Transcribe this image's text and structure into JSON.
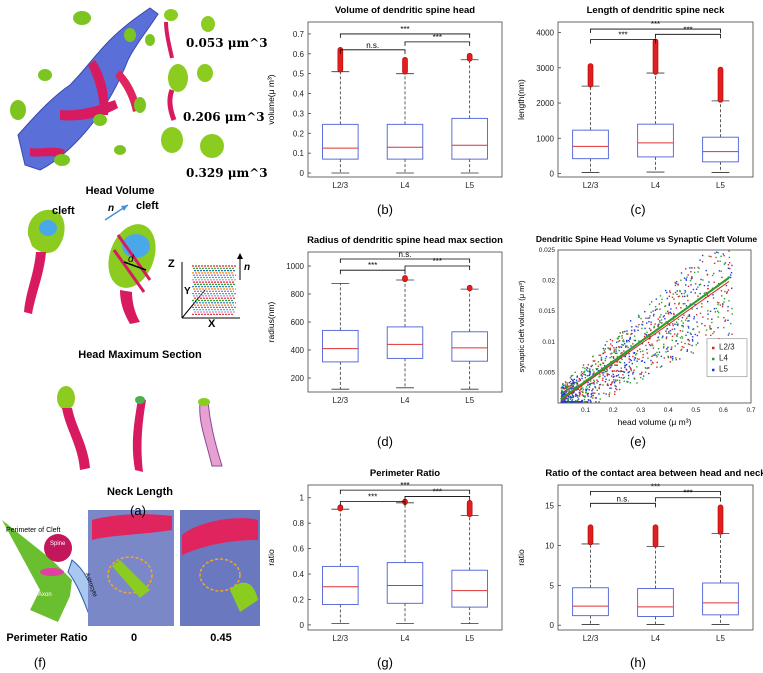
{
  "figure": {
    "left": {
      "head_volume_values": [
        "0.053 μm^3",
        "0.206 μm^3",
        "0.329 μm^3"
      ],
      "head_volume_caption": "Head Volume",
      "cleft_label_1": "cleft",
      "cleft_label_2": "cleft",
      "vector_n": "n",
      "diameter_d": "d",
      "axis_z": "Z",
      "axis_y": "Y",
      "axis_x": "X",
      "head_max_section_caption": "Head Maximum Section",
      "neck_length_caption": "Neck Length",
      "panel_a": "(a)",
      "perimeter_of_cleft": "Perimeter of Cleft",
      "spine_label": "Spine",
      "axon_label": "Axon",
      "astrocyte_label": "Astrocyte",
      "perimeter_ratio_caption": "Perimeter Ratio",
      "ratio_value_1": "0",
      "ratio_value_2": "0.45",
      "panel_f": "(f)"
    },
    "panel_letters": {
      "b": "(b)",
      "c": "(c)",
      "d": "(d)",
      "e": "(e)",
      "g": "(g)",
      "h": "(h)"
    }
  },
  "chart_data": [
    {
      "id": "b",
      "type": "box",
      "title": "Volume of dendritic spine head",
      "ylabel": "volume(μ m³)",
      "categories": [
        "L2/3",
        "L4",
        "L5"
      ],
      "ylim": [
        -0.02,
        0.76
      ],
      "yticks": [
        0,
        0.1,
        0.2,
        0.3,
        0.4,
        0.5,
        0.6,
        0.7
      ],
      "ytick_labels": [
        "0",
        "0.1",
        "0.2",
        "0.3",
        "0.4",
        "0.5",
        "0.6",
        "0.7"
      ],
      "boxes": [
        {
          "q1": 0.07,
          "median": 0.125,
          "q3": 0.245,
          "lo": 0.0,
          "hi": 0.51,
          "out_lo": 0.52,
          "out_hi": 0.62
        },
        {
          "q1": 0.07,
          "median": 0.13,
          "q3": 0.245,
          "lo": 0.0,
          "hi": 0.5,
          "out_lo": 0.51,
          "out_hi": 0.57
        },
        {
          "q1": 0.07,
          "median": 0.14,
          "q3": 0.275,
          "lo": 0.0,
          "hi": 0.57,
          "out_lo": 0.575,
          "out_hi": 0.59
        }
      ],
      "sig": [
        {
          "from": 0,
          "to": 2,
          "y": 0.7,
          "label": "***"
        },
        {
          "from": 0,
          "to": 1,
          "y": 0.62,
          "label": "n.s."
        },
        {
          "from": 1,
          "to": 2,
          "y": 0.66,
          "label": "***"
        }
      ]
    },
    {
      "id": "c",
      "type": "box",
      "title": "Length of dendritic spine neck",
      "ylabel": "length(nm)",
      "categories": [
        "L2/3",
        "L4",
        "L5"
      ],
      "ylim": [
        -100,
        4300
      ],
      "yticks": [
        0,
        1000,
        2000,
        3000,
        4000
      ],
      "ytick_labels": [
        "0",
        "1000",
        "2000",
        "3000",
        "4000"
      ],
      "boxes": [
        {
          "q1": 420,
          "median": 770,
          "q3": 1230,
          "lo": 30,
          "hi": 2480,
          "out_lo": 2520,
          "out_hi": 3050
        },
        {
          "q1": 470,
          "median": 870,
          "q3": 1400,
          "lo": 40,
          "hi": 2850,
          "out_lo": 2880,
          "out_hi": 3750
        },
        {
          "q1": 330,
          "median": 620,
          "q3": 1030,
          "lo": 30,
          "hi": 2060,
          "out_lo": 2090,
          "out_hi": 2950
        }
      ],
      "sig": [
        {
          "from": 0,
          "to": 2,
          "y": 4100,
          "label": "***"
        },
        {
          "from": 0,
          "to": 1,
          "y": 3800,
          "label": "***"
        },
        {
          "from": 1,
          "to": 2,
          "y": 3950,
          "label": "***"
        }
      ]
    },
    {
      "id": "d",
      "type": "box",
      "title": "Radius of dendritic spine head max section",
      "ylabel": "radius(nm)",
      "categories": [
        "L2/3",
        "L4",
        "L5"
      ],
      "ylim": [
        100,
        1100
      ],
      "yticks": [
        200,
        400,
        600,
        800,
        1000
      ],
      "ytick_labels": [
        "200",
        "400",
        "600",
        "800",
        "1000"
      ],
      "boxes": [
        {
          "q1": 315,
          "median": 410,
          "q3": 540,
          "lo": 120,
          "hi": 875,
          "out_lo": null,
          "out_hi": null
        },
        {
          "q1": 340,
          "median": 440,
          "q3": 565,
          "lo": 130,
          "hi": 900,
          "out_lo": 905,
          "out_hi": 915
        },
        {
          "q1": 320,
          "median": 415,
          "q3": 530,
          "lo": 120,
          "hi": 835,
          "out_lo": 840,
          "out_hi": 845
        }
      ],
      "sig": [
        {
          "from": 0,
          "to": 2,
          "y": 1050,
          "label": "n.s."
        },
        {
          "from": 0,
          "to": 1,
          "y": 970,
          "label": "***"
        },
        {
          "from": 1,
          "to": 2,
          "y": 1000,
          "label": "***"
        }
      ]
    },
    {
      "id": "e",
      "type": "scatter",
      "title": "Dendritic Spine Head Volume vs Synaptic Cleft Volume",
      "xlabel": "head volume (μ m³)",
      "ylabel": "synaptic cleft volume (μ m³)",
      "xlim": [
        0,
        0.7
      ],
      "ylim": [
        0,
        0.025
      ],
      "xticks": [
        0.1,
        0.2,
        0.3,
        0.4,
        0.5,
        0.6,
        0.7
      ],
      "xtick_labels": [
        "0.1",
        "0.2",
        "0.3",
        "0.4",
        "0.5",
        "0.6",
        "0.7"
      ],
      "yticks": [
        0.005,
        0.01,
        0.015,
        0.02,
        0.025
      ],
      "ytick_labels": [
        "0.005",
        "0.01",
        "0.015",
        "0.02",
        "0.025"
      ],
      "series": [
        {
          "name": "L2/3",
          "color": "#d62728"
        },
        {
          "name": "L4",
          "color": "#2ca02c"
        },
        {
          "name": "L5",
          "color": "#1f3fd6"
        }
      ],
      "trend_slope": 0.033,
      "legend": "right"
    },
    {
      "id": "g",
      "type": "box",
      "title": "Perimeter Ratio",
      "ylabel": "ratio",
      "categories": [
        "L2/3",
        "L4",
        "L5"
      ],
      "ylim": [
        -0.04,
        1.1
      ],
      "yticks": [
        0,
        0.2,
        0.4,
        0.6,
        0.8,
        1
      ],
      "ytick_labels": [
        "0",
        "0.2",
        "0.4",
        "0.6",
        "0.8",
        "1"
      ],
      "boxes": [
        {
          "q1": 0.16,
          "median": 0.3,
          "q3": 0.46,
          "lo": 0.01,
          "hi": 0.91,
          "out_lo": 0.915,
          "out_hi": 0.925
        },
        {
          "q1": 0.17,
          "median": 0.31,
          "q3": 0.49,
          "lo": 0.01,
          "hi": 0.96,
          "out_lo": 0.965,
          "out_hi": 0.97
        },
        {
          "q1": 0.14,
          "median": 0.27,
          "q3": 0.43,
          "lo": 0.01,
          "hi": 0.86,
          "out_lo": 0.87,
          "out_hi": 0.96
        }
      ],
      "sig": [
        {
          "from": 0,
          "to": 2,
          "y": 1.06,
          "label": "***"
        },
        {
          "from": 0,
          "to": 1,
          "y": 0.97,
          "label": "***"
        },
        {
          "from": 1,
          "to": 2,
          "y": 1.01,
          "label": "***"
        }
      ]
    },
    {
      "id": "h",
      "type": "box",
      "title": "Ratio of the contact area between head and neck",
      "ylabel": "ratio",
      "categories": [
        "L2/3",
        "L4",
        "L5"
      ],
      "ylim": [
        -0.6,
        17.6
      ],
      "yticks": [
        0,
        5,
        10,
        15
      ],
      "ytick_labels": [
        "0",
        "5",
        "10",
        "15"
      ],
      "boxes": [
        {
          "q1": 1.2,
          "median": 2.4,
          "q3": 4.7,
          "lo": 0.1,
          "hi": 10.2,
          "out_lo": 10.4,
          "out_hi": 12.3
        },
        {
          "q1": 1.1,
          "median": 2.3,
          "q3": 4.6,
          "lo": 0.1,
          "hi": 9.9,
          "out_lo": 10.1,
          "out_hi": 12.3
        },
        {
          "q1": 1.3,
          "median": 2.8,
          "q3": 5.3,
          "lo": 0.1,
          "hi": 11.5,
          "out_lo": 11.7,
          "out_hi": 14.8
        }
      ],
      "sig": [
        {
          "from": 0,
          "to": 2,
          "y": 16.8,
          "label": "***"
        },
        {
          "from": 0,
          "to": 1,
          "y": 15.3,
          "label": "n.s."
        },
        {
          "from": 1,
          "to": 2,
          "y": 16.0,
          "label": "***"
        }
      ]
    }
  ]
}
